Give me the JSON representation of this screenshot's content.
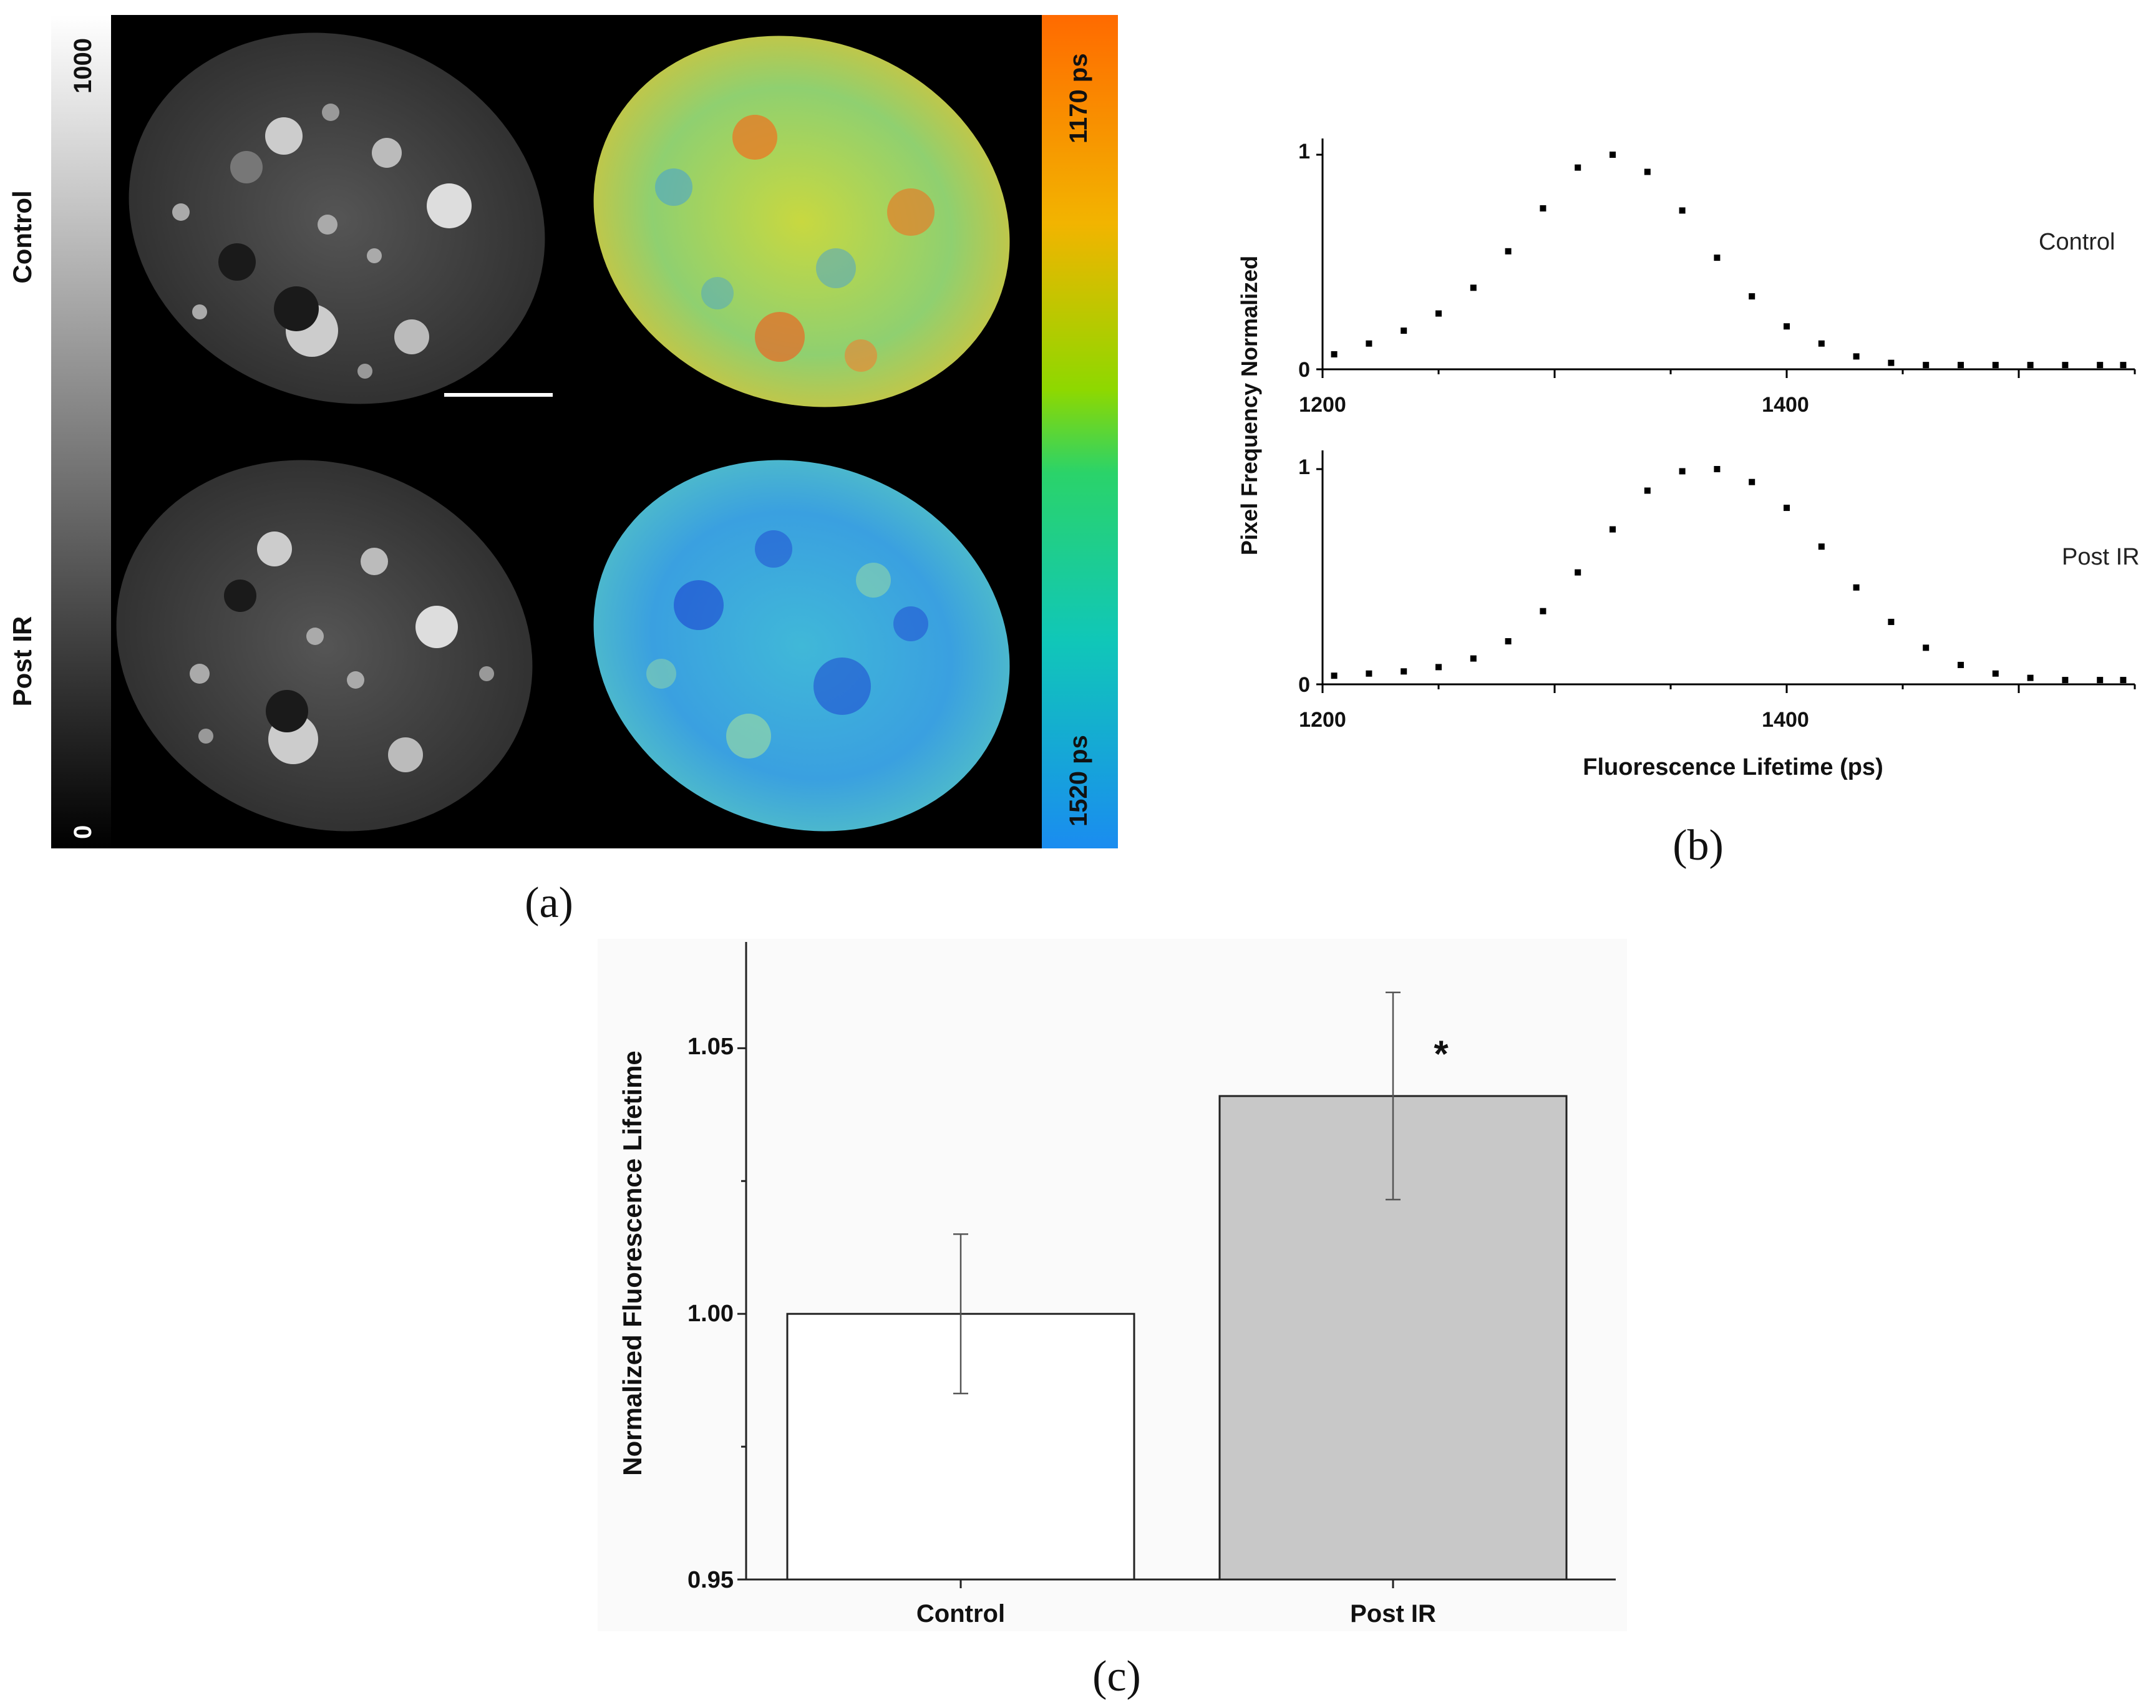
{
  "panel_a": {
    "row_labels": [
      "Control",
      "Post IR"
    ],
    "intensity_scale": {
      "max_label": "1000",
      "min_label": "0"
    },
    "lifetime_scale": {
      "top_label": "1170 ps",
      "bottom_label": "1520 ps",
      "colors": [
        "#ff6a00",
        "#ff9a00",
        "#d6d000",
        "#5ed400",
        "#18d37a",
        "#10c6c0",
        "#1a9cf0"
      ]
    },
    "caption": "(a)"
  },
  "chart_data": [
    {
      "type": "scatter",
      "title": "",
      "panel": "b-top",
      "series_label": "Control",
      "xlabel": "",
      "ylabel": "Pixel Frequency Normalized",
      "xlim": [
        1200,
        1550
      ],
      "ylim": [
        0,
        1
      ],
      "xticks": [
        1200,
        1400
      ],
      "yticks": [
        0,
        1
      ],
      "x": [
        1205,
        1220,
        1235,
        1250,
        1265,
        1280,
        1295,
        1310,
        1325,
        1340,
        1355,
        1370,
        1385,
        1400,
        1415,
        1430,
        1445,
        1460,
        1475,
        1490,
        1505,
        1520,
        1535,
        1545
      ],
      "y": [
        0.07,
        0.12,
        0.18,
        0.26,
        0.38,
        0.55,
        0.75,
        0.94,
        1.0,
        0.92,
        0.74,
        0.52,
        0.34,
        0.2,
        0.12,
        0.06,
        0.03,
        0.02,
        0.02,
        0.02,
        0.02,
        0.02,
        0.02,
        0.02
      ]
    },
    {
      "type": "scatter",
      "title": "",
      "panel": "b-bottom",
      "series_label": "Post IR",
      "xlabel": "Fluorescence Lifetime (ps)",
      "ylabel": "Pixel Frequency Normalized",
      "xlim": [
        1200,
        1550
      ],
      "ylim": [
        0,
        1
      ],
      "xticks": [
        1200,
        1400
      ],
      "yticks": [
        0,
        1
      ],
      "x": [
        1205,
        1220,
        1235,
        1250,
        1265,
        1280,
        1295,
        1310,
        1325,
        1340,
        1355,
        1370,
        1385,
        1400,
        1415,
        1430,
        1445,
        1460,
        1475,
        1490,
        1505,
        1520,
        1535,
        1545
      ],
      "y": [
        0.04,
        0.05,
        0.06,
        0.08,
        0.12,
        0.2,
        0.34,
        0.52,
        0.72,
        0.9,
        0.99,
        1.0,
        0.94,
        0.82,
        0.64,
        0.45,
        0.29,
        0.17,
        0.09,
        0.05,
        0.03,
        0.02,
        0.02,
        0.02
      ]
    },
    {
      "type": "bar",
      "title": "",
      "panel": "c",
      "categories": [
        "Control",
        "Post IR"
      ],
      "values": [
        1.0,
        1.041
      ],
      "errors": [
        0.015,
        0.0195
      ],
      "bar_colors": [
        "#ffffff",
        "#c8c8c8"
      ],
      "annotation": "*",
      "xlabel": "",
      "ylabel": "Normalized Fluorescence Lifetime",
      "ylim": [
        0.95,
        1.07
      ],
      "yticks": [
        0.95,
        1.0,
        1.05
      ],
      "ytick_labels": [
        "0.95",
        "1.00",
        "1.05"
      ]
    }
  ],
  "captions": {
    "b": "(b)",
    "c": "(c)"
  }
}
